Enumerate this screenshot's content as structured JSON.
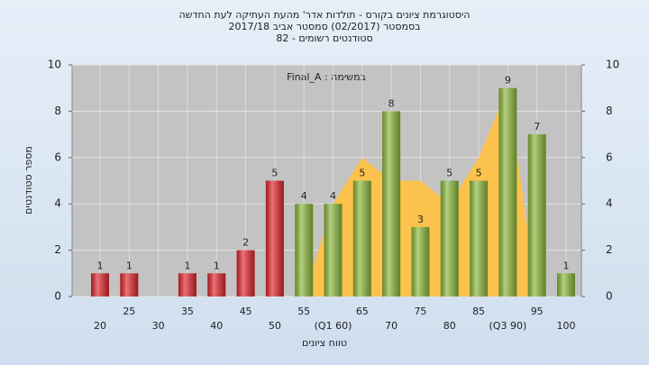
{
  "chart_data": {
    "type": "bar",
    "title": [
      "היסטוגרמת ציונים בקורס - תולדות אדר' מהעת העתיקה לעת החדשה",
      "בסמסטר  (02/2017)  סמסטר אביב 2017/18",
      "סטודנטים רשומים - 82"
    ],
    "annotation": "Final_A : במשימה",
    "x_label": "טווח ציונים",
    "y_label": "מספר סטודנטים",
    "categories": [
      "20",
      "25",
      "30",
      "35",
      "40",
      "45",
      "50",
      "55",
      "(Q1 60)",
      "65",
      "70",
      "75",
      "80",
      "85",
      "(Q3 90)",
      "95",
      "100"
    ],
    "series": [
      {
        "values": [
          null,
          null,
          null,
          null,
          null,
          null,
          null,
          0,
          4,
          6,
          5,
          5,
          4,
          6,
          9,
          0,
          null
        ],
        "color": "#fbc24d"
      },
      {
        "values": [
          1,
          1,
          0,
          1,
          1,
          2,
          5,
          4,
          4,
          5,
          8,
          3,
          5,
          5,
          9,
          7,
          1
        ],
        "value_labels": [
          "1",
          "1",
          null,
          "1",
          "1",
          "2",
          "5",
          "4",
          "4",
          "5",
          "8",
          "3",
          "5",
          "5",
          "9",
          "7",
          "1"
        ],
        "colors": [
          "#e0262b",
          "#e0262b",
          "#e0262b",
          "#e0262b",
          "#e0262b",
          "#e0262b",
          "#e0262b",
          "#8cb83a",
          "#8cb83a",
          "#8cb83a",
          "#8cb83a",
          "#8cb83a",
          "#8cb83a",
          "#8cb83a",
          "#8cb83a",
          "#8cb83a",
          "#8cb83a"
        ]
      }
    ],
    "ylim": [
      0,
      10
    ],
    "yticks": [
      0,
      2,
      4,
      6,
      8,
      10
    ],
    "y2lim": [
      0,
      10
    ],
    "y2ticks": [
      0,
      2,
      4,
      6,
      8,
      10
    ],
    "grid": true
  }
}
